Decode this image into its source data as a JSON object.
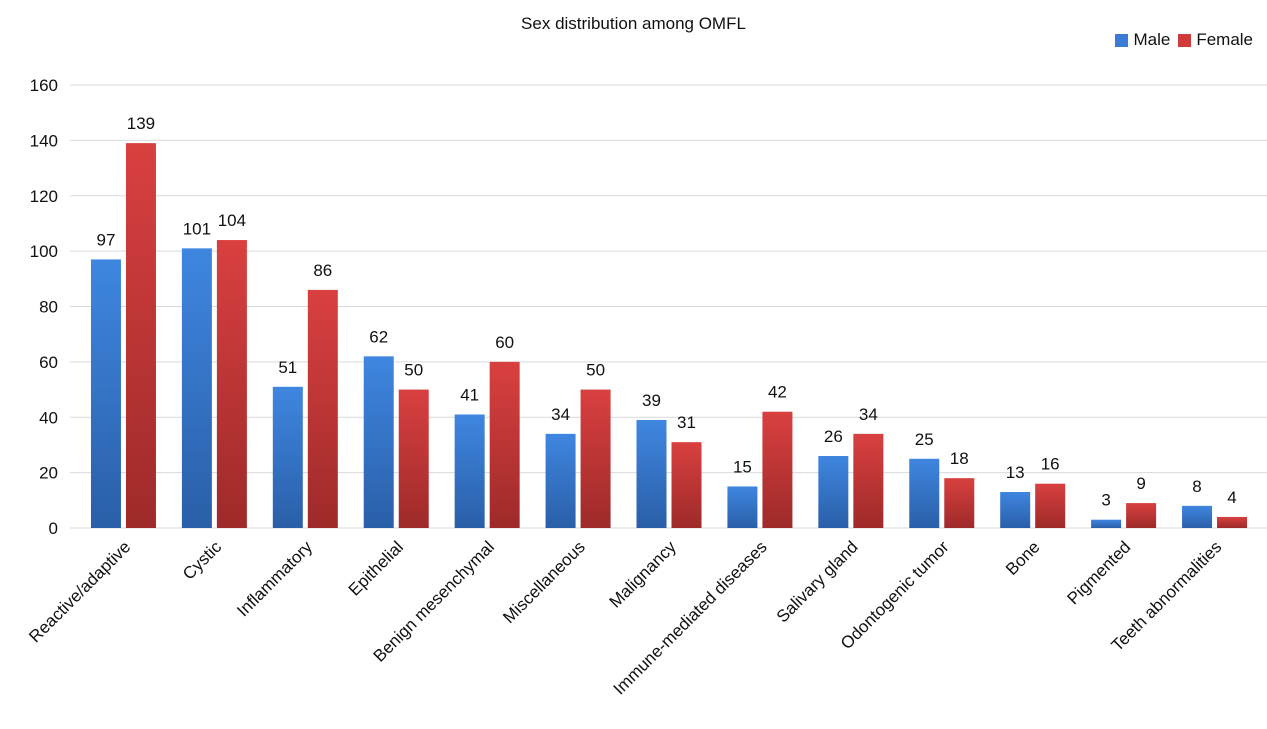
{
  "chart_data": {
    "type": "bar",
    "title": "Sex distribution among OMFL",
    "xlabel": "",
    "ylabel": "",
    "ylim": [
      0,
      160
    ],
    "yticks": [
      0,
      20,
      40,
      60,
      80,
      100,
      120,
      140,
      160
    ],
    "grid": true,
    "legend_position": "top-right",
    "categories": [
      "Reactive/adaptive",
      "Cystic",
      "Inflammatory",
      "Epithelial",
      "Benign mesenchymal",
      "Miscellaneous",
      "Malignancy",
      "Immune-mediated diseases",
      "Salivary gland",
      "Odontogenic tumor",
      "Bone",
      "Pigmented",
      "Teeth abnormalities"
    ],
    "series": [
      {
        "name": "Male",
        "color": "#3a7bd5",
        "values": [
          97,
          101,
          51,
          62,
          41,
          34,
          39,
          15,
          26,
          25,
          13,
          3,
          8
        ]
      },
      {
        "name": "Female",
        "color": "#d13a3a",
        "values": [
          139,
          104,
          86,
          50,
          60,
          50,
          31,
          42,
          34,
          18,
          16,
          9,
          4
        ]
      }
    ]
  }
}
